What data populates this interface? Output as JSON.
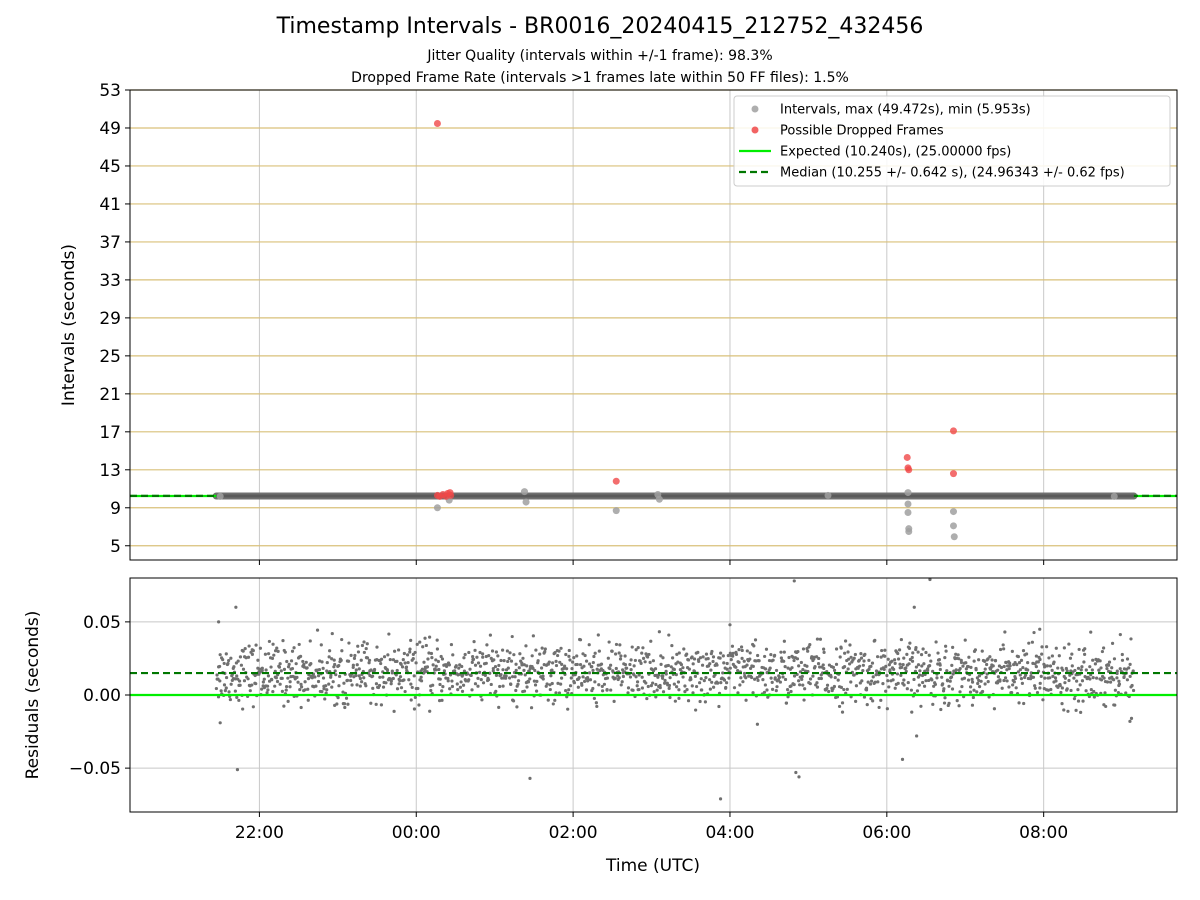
{
  "chart_data": [
    {
      "type": "scatter",
      "title": "Timestamp Intervals - BR0016_20240415_212752_432456",
      "subtitle_lines": [
        "Jitter Quality (intervals within +/-1 frame): 98.3%",
        "Dropped Frame Rate (intervals >1 frames late within 50 FF files): 1.5%"
      ],
      "xlabel": "",
      "ylabel": "Intervals (seconds)",
      "x_unit": "hours since 00:00 UTC (negative = previous day)",
      "xlim": [
        -3.65,
        9.7
      ],
      "ylim": [
        3.5,
        53
      ],
      "yticks": [
        5,
        9,
        13,
        17,
        21,
        25,
        29,
        33,
        37,
        41,
        45,
        49,
        53
      ],
      "xticks": [
        -2,
        0,
        2,
        4,
        6,
        8
      ],
      "grid": true,
      "legend_position": "top-right",
      "legend": [
        {
          "label": "Intervals, max (49.472s), min (5.953s)",
          "kind": "marker",
          "color": "#a0a0a0"
        },
        {
          "label": "Possible Dropped Frames",
          "kind": "marker",
          "color": "#f07070"
        },
        {
          "label": "Expected (10.240s), (25.00000 fps)",
          "kind": "line",
          "color": "#00ee00"
        },
        {
          "label": "Median (10.255 +/- 0.642 s), (24.96343 +/- 0.62 fps)",
          "kind": "dashed",
          "color": "#007700"
        }
      ],
      "expected_value": 10.24,
      "median_value": 10.255,
      "series": [
        {
          "name": "Intervals, max (49.472s), min (5.953s)",
          "color": "#a0a0a0",
          "dense_band": {
            "x_start": -2.55,
            "x_end": 9.15,
            "y": 10.24
          },
          "points": [
            {
              "x": -2.5,
              "y": 10.2
            },
            {
              "x": 0.27,
              "y": 9.0
            },
            {
              "x": 0.42,
              "y": 9.8
            },
            {
              "x": 1.38,
              "y": 10.7
            },
            {
              "x": 1.4,
              "y": 9.6
            },
            {
              "x": 2.55,
              "y": 8.7
            },
            {
              "x": 3.08,
              "y": 10.4
            },
            {
              "x": 3.1,
              "y": 9.9
            },
            {
              "x": 5.25,
              "y": 10.3
            },
            {
              "x": 6.27,
              "y": 9.4
            },
            {
              "x": 6.27,
              "y": 8.5
            },
            {
              "x": 6.28,
              "y": 6.8
            },
            {
              "x": 6.28,
              "y": 6.5
            },
            {
              "x": 6.27,
              "y": 10.6
            },
            {
              "x": 6.85,
              "y": 8.6
            },
            {
              "x": 6.85,
              "y": 7.1
            },
            {
              "x": 6.86,
              "y": 5.95
            },
            {
              "x": 8.9,
              "y": 10.2
            }
          ]
        },
        {
          "name": "Possible Dropped Frames",
          "color": "#f07070",
          "points": [
            {
              "x": 0.27,
              "y": 49.47
            },
            {
              "x": 0.27,
              "y": 10.3
            },
            {
              "x": 0.3,
              "y": 10.2
            },
            {
              "x": 0.34,
              "y": 10.4
            },
            {
              "x": 0.38,
              "y": 10.2
            },
            {
              "x": 0.4,
              "y": 10.5
            },
            {
              "x": 0.43,
              "y": 10.6
            },
            {
              "x": 0.44,
              "y": 10.3
            },
            {
              "x": 2.55,
              "y": 11.8
            },
            {
              "x": 6.26,
              "y": 14.3
            },
            {
              "x": 6.27,
              "y": 13.2
            },
            {
              "x": 6.28,
              "y": 13.0
            },
            {
              "x": 6.85,
              "y": 17.1
            },
            {
              "x": 6.85,
              "y": 12.6
            }
          ]
        }
      ]
    },
    {
      "type": "scatter",
      "xlabel": "Time (UTC)",
      "ylabel": "Residuals (seconds)",
      "xlim": [
        -3.65,
        9.7
      ],
      "ylim": [
        -0.08,
        0.08
      ],
      "yticks": [
        -0.05,
        0.0,
        0.05
      ],
      "ytick_labels": [
        "−0.05",
        "0.00",
        "0.05"
      ],
      "xticks": [
        -2,
        0,
        2,
        4,
        6,
        8
      ],
      "xtick_labels": [
        "22:00",
        "00:00",
        "02:00",
        "04:00",
        "06:00",
        "08:00"
      ],
      "grid": true,
      "expected_value": 0.0,
      "median_value": 0.015,
      "series": [
        {
          "name": "Residuals",
          "color": "#707070",
          "cloud": {
            "x_start": -2.55,
            "x_end": 9.15,
            "center": 0.015,
            "spread": 0.012,
            "count": 1800
          },
          "outliers": [
            {
              "x": -2.52,
              "y": 0.05
            },
            {
              "x": -2.5,
              "y": -0.019
            },
            {
              "x": -2.3,
              "y": 0.06
            },
            {
              "x": -2.28,
              "y": -0.051
            },
            {
              "x": 1.45,
              "y": -0.057
            },
            {
              "x": 3.88,
              "y": -0.071
            },
            {
              "x": 4.82,
              "y": 0.078
            },
            {
              "x": 4.84,
              "y": -0.053
            },
            {
              "x": 4.88,
              "y": -0.056
            },
            {
              "x": 6.2,
              "y": -0.044
            },
            {
              "x": 6.38,
              "y": -0.028
            },
            {
              "x": 6.35,
              "y": 0.06
            },
            {
              "x": 6.55,
              "y": 0.079
            },
            {
              "x": 4.35,
              "y": -0.02
            },
            {
              "x": 9.1,
              "y": -0.018
            },
            {
              "x": 9.12,
              "y": -0.016
            },
            {
              "x": 7.95,
              "y": 0.045
            },
            {
              "x": 8.6,
              "y": 0.043
            },
            {
              "x": 4.0,
              "y": 0.048
            },
            {
              "x": 3.22,
              "y": 0.041
            }
          ]
        }
      ]
    }
  ]
}
